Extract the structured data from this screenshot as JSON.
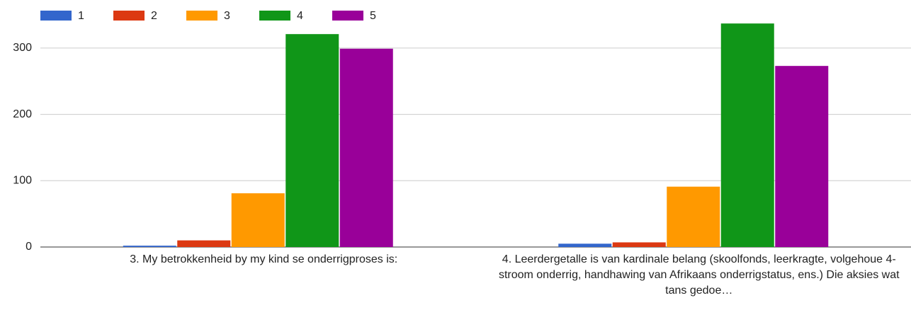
{
  "chart_data": {
    "type": "bar",
    "categories": [
      "3. My betrokkenheid by my kind se onderrigproses is:",
      "4. Leerdergetalle is van kardinale belang (skoolfonds, leerkragte, volgehoue 4-stroom onderrig, handhawing van Afrikaans onderrigstatus, ens.) Die aksies wat tans gedoe…"
    ],
    "series": [
      {
        "name": "1",
        "color": "#3366cc",
        "values": [
          2,
          5
        ]
      },
      {
        "name": "2",
        "color": "#dc3912",
        "values": [
          10,
          7
        ]
      },
      {
        "name": "3",
        "color": "#ff9900",
        "values": [
          81,
          91
        ]
      },
      {
        "name": "4",
        "color": "#109618",
        "values": [
          321,
          337
        ]
      },
      {
        "name": "5",
        "color": "#990099",
        "values": [
          299,
          273
        ]
      }
    ],
    "ylim": [
      0,
      350
    ],
    "yticks": [
      0,
      100,
      200,
      300
    ],
    "grid": true,
    "legend": "top"
  }
}
